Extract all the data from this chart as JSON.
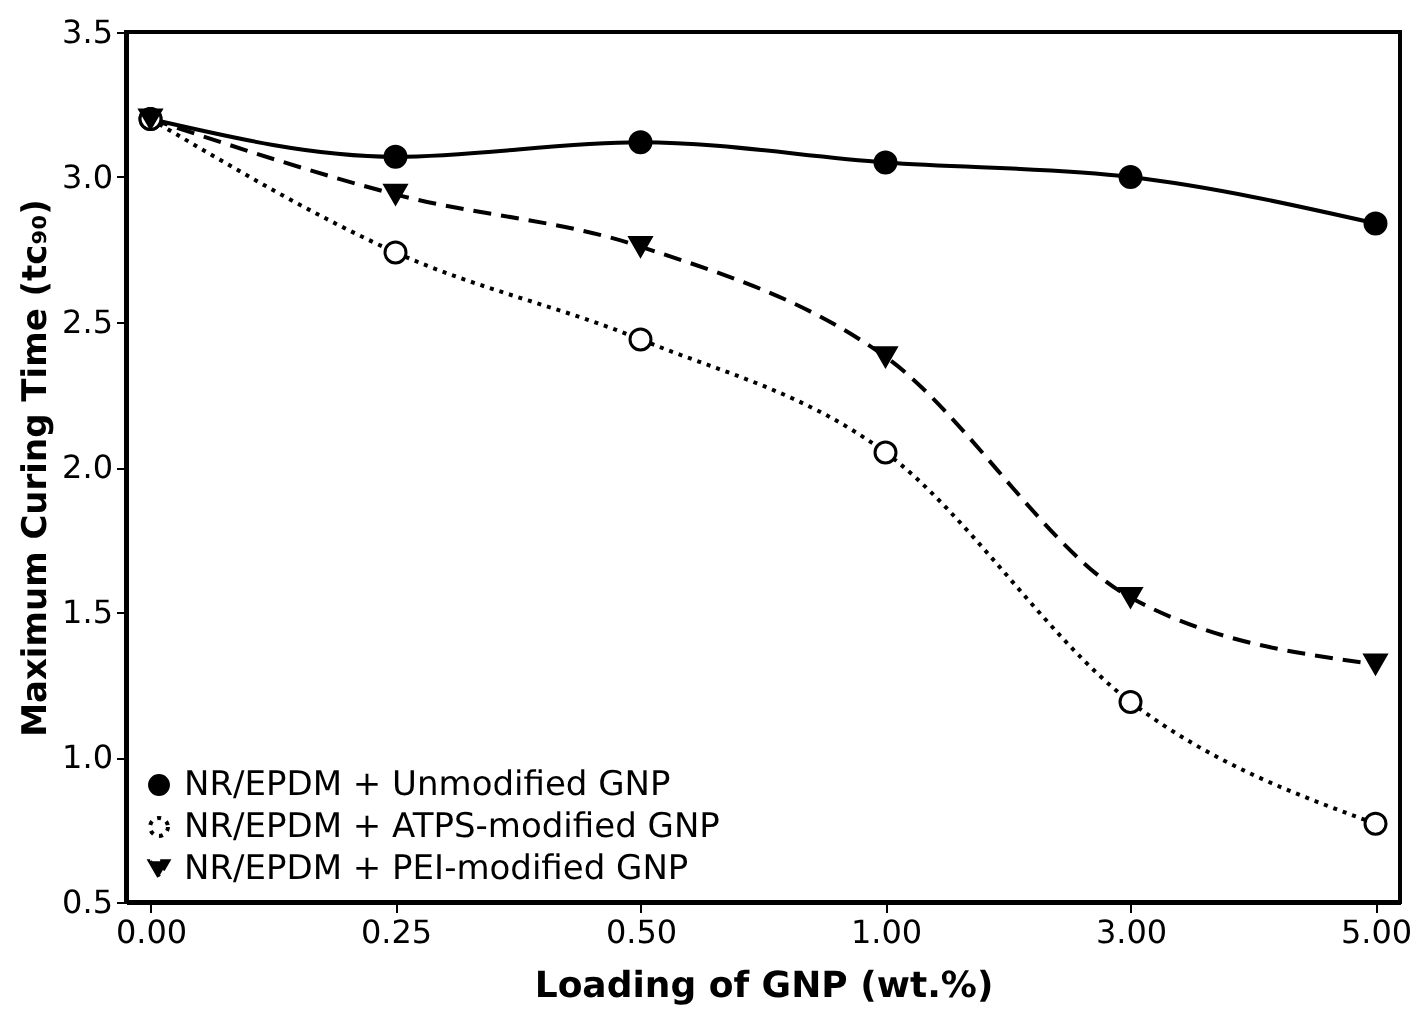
{
  "chart_data": {
    "type": "line",
    "xlabel": "Loading of GNP (wt.%)",
    "ylabel": "Maximum Curing Time (tc₉₀)",
    "categories": [
      "0.00",
      "0.25",
      "0.50",
      "1.00",
      "3.00",
      "5.00"
    ],
    "ylim": [
      0.5,
      3.5
    ],
    "yticks": [
      {
        "value": 0.5,
        "label": "0.5"
      },
      {
        "value": 1,
        "label": "1.0"
      },
      {
        "value": 1.5,
        "label": "1.5"
      },
      {
        "value": 2,
        "label": "2.0"
      },
      {
        "value": 2.5,
        "label": "2.5"
      },
      {
        "value": 3,
        "label": "3.0"
      },
      {
        "value": 3.5,
        "label": "3.5"
      }
    ],
    "grid": false,
    "legend": "bottom left",
    "series": [
      {
        "name": "NR/EPDM + Unmodified GNP",
        "color": "#000000",
        "marker": "circle",
        "line_style": "solid",
        "values": [
          3.2,
          3.07,
          3.12,
          3.05,
          3.0,
          2.84
        ]
      },
      {
        "name": "NR/EPDM + ATPS-modified GNP",
        "color": "#000000",
        "marker": "circle_open",
        "line_style": "dotted",
        "values": [
          3.2,
          2.74,
          2.44,
          2.05,
          1.19,
          0.77
        ]
      },
      {
        "name": "NR/EPDM + PEI-modified GNP",
        "color": "#000000",
        "marker": "triangle-down",
        "line_style": "dashed",
        "values": [
          3.2,
          2.94,
          2.76,
          2.38,
          1.55,
          1.32
        ]
      }
    ]
  }
}
